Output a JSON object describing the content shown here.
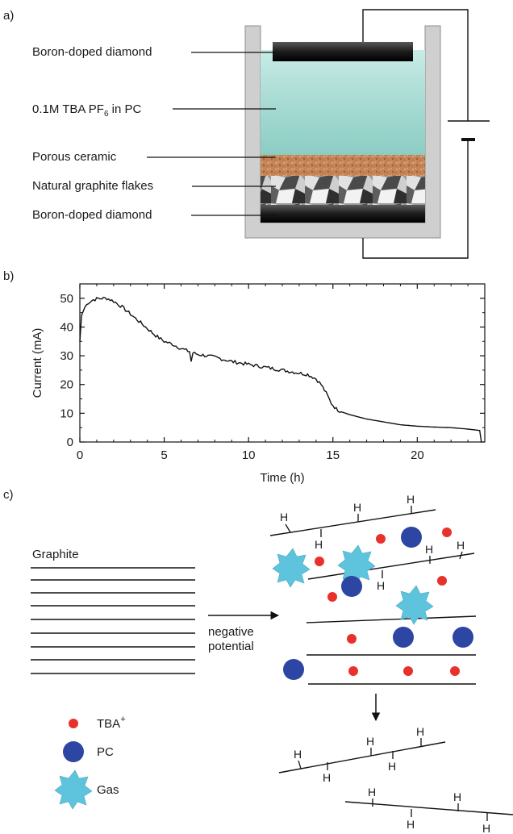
{
  "panel_a": {
    "label": "a)",
    "labels": {
      "top_electrode": "Boron-doped diamond",
      "electrolyte_prefix": "0.1M TBA PF",
      "electrolyte_sub": "6",
      "electrolyte_suffix": " in PC",
      "porous_ceramic": "Porous ceramic",
      "graphite_flakes": "Natural graphite flakes",
      "bottom_electrode": "Boron-doped diamond"
    },
    "colors": {
      "electrolyte": "#a7dbd3",
      "ceramic": "#c8895a",
      "container": "#cfcfcf",
      "electrode": "#1f1f1f"
    }
  },
  "panel_b": {
    "label": "b)"
  },
  "chart_data": {
    "type": "line",
    "xlabel": "Time (h)",
    "ylabel": "Current (mA)",
    "xlim": [
      0,
      24
    ],
    "ylim": [
      0,
      55
    ],
    "xticks": [
      0,
      5,
      10,
      15,
      20
    ],
    "yticks": [
      0,
      10,
      20,
      30,
      40,
      50
    ],
    "series": [
      {
        "x": [
          0,
          0.1,
          0.3,
          0.5,
          0.8,
          1.0,
          1.3,
          1.6,
          2.0,
          2.5,
          3.0,
          3.5,
          4.0,
          4.5,
          5.0,
          5.5,
          6.0,
          6.5,
          6.6,
          6.7,
          7.0,
          8.0,
          9.0,
          10.0,
          11.0,
          12.0,
          13.0,
          13.5,
          14.0,
          14.3,
          14.6,
          14.9,
          15.2,
          15.5,
          16.0,
          17.0,
          18.0,
          19.0,
          20.0,
          21.0,
          22.0,
          23.0,
          23.7,
          23.8
        ],
        "y": [
          35,
          44,
          47,
          48.5,
          49.5,
          49.8,
          50,
          50,
          49,
          47,
          44.5,
          42,
          39.5,
          37,
          35,
          34,
          32.5,
          31.5,
          28,
          31,
          30.5,
          29.5,
          28,
          27,
          26,
          25,
          24,
          23.5,
          22,
          20,
          17,
          13.5,
          11.5,
          10.5,
          9.5,
          8,
          7,
          6,
          5.5,
          5.2,
          5,
          4.5,
          4,
          0
        ]
      }
    ]
  },
  "panel_c": {
    "label": "c)",
    "graphite_title": "Graphite",
    "arrow_text_1": "negative",
    "arrow_text_2": "potential",
    "h_label": "H",
    "legend": {
      "tba_prefix": "TBA",
      "tba_sup": "+",
      "pc": "PC",
      "gas": "Gas"
    },
    "colors": {
      "tba": "#e8312a",
      "pc": "#2d45a3",
      "gas": "#5ec3dc"
    }
  }
}
